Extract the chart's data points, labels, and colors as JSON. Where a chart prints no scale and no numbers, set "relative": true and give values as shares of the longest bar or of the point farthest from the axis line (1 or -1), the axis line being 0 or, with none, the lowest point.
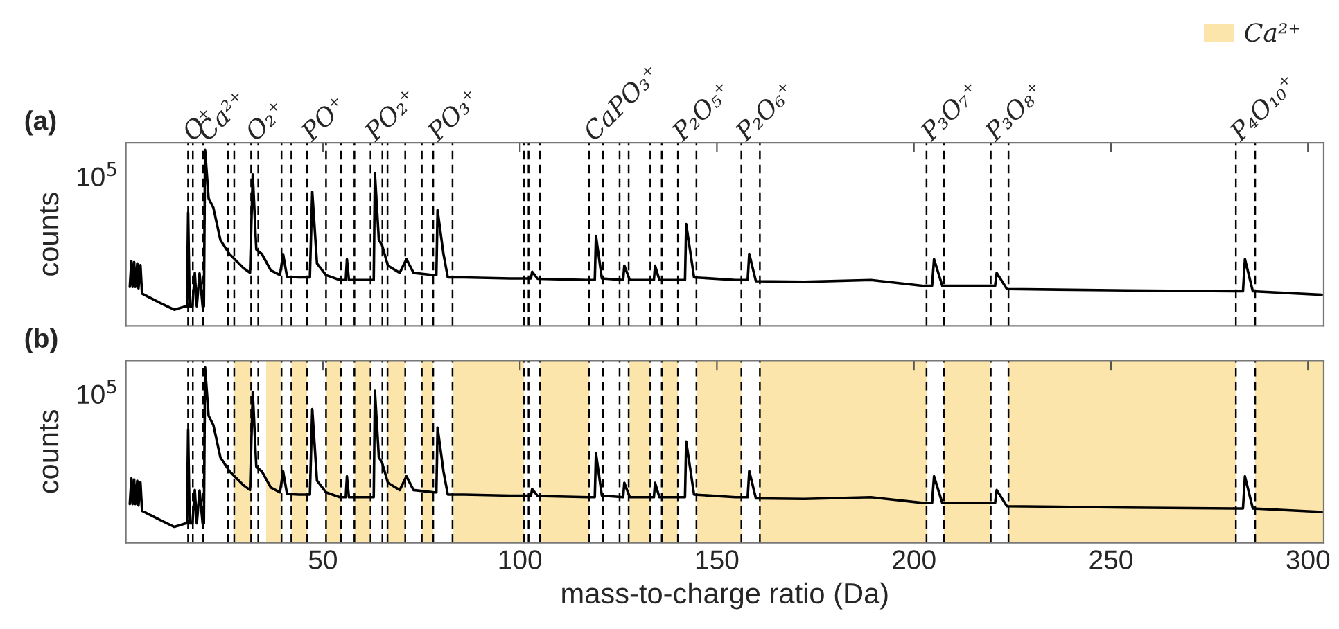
{
  "chart_data": [
    {
      "type": "line",
      "title": "(a)",
      "ylabel": "counts",
      "relative": true,
      "xlim": [
        0,
        304
      ],
      "xticks": [
        50,
        100,
        150,
        200,
        250,
        300
      ],
      "tick_labels": false,
      "grid": false,
      "series": [
        {
          "color": "#000000",
          "x": [
            1.0,
            1.4,
            1.7,
            2.1,
            2.4,
            2.9,
            3.2,
            3.7,
            4.1,
            8.7,
            12.3,
            15.2,
            15.5,
            15.8,
            16.2,
            16.9,
            17.5,
            18.0,
            18.7,
            19.5,
            19.8,
            20.1,
            21.0,
            22.2,
            24.0,
            26.3,
            29.8,
            31.5,
            32.2,
            33.1,
            34.5,
            36.8,
            39.1,
            39.9,
            40.9,
            43.8,
            46.7,
            47.3,
            48.5,
            50.8,
            54.3,
            55.8,
            56.1,
            56.6,
            61.3,
            62.9,
            63.2,
            64.2,
            65.0,
            66.5,
            69.5,
            71.2,
            73.0,
            78.2,
            78.8,
            79.1,
            80.6,
            81.7,
            85.8,
            97.5,
            102.8,
            103.1,
            104.5,
            117.3,
            119.0,
            119.3,
            120.8,
            126.2,
            126.5,
            127.9,
            134.0,
            134.3,
            135.4,
            141.3,
            141.9,
            142.2,
            144.2,
            154.7,
            157.8,
            158.2,
            159.9,
            172.2,
            189.1,
            202.5,
            204.6,
            205.1,
            207.2,
            218.9,
            220.6,
            221.0,
            223.6,
            253.9,
            281.9,
            283.5,
            284.0,
            286.0,
            303.5
          ],
          "values": [
            0.221,
            0.367,
            0.221,
            0.362,
            0.221,
            0.354,
            0.213,
            0.345,
            0.183,
            0.13,
            0.091,
            0.111,
            0.111,
            0.644,
            0.111,
            0.111,
            0.301,
            0.111,
            0.298,
            0.107,
            0.111,
            1,
            0.724,
            0.672,
            0.487,
            0.408,
            0.329,
            0.301,
            0.86,
            0.434,
            0.408,
            0.315,
            0.288,
            0.408,
            0.279,
            0.275,
            0.275,
            0.762,
            0.354,
            0.288,
            0.26,
            0.26,
            0.379,
            0.26,
            0.26,
            0.26,
            0.867,
            0.487,
            0.459,
            0.342,
            0.301,
            0.379,
            0.301,
            0.288,
            0.288,
            0.657,
            0.408,
            0.275,
            0.275,
            0.269,
            0.269,
            0.307,
            0.267,
            0.26,
            0.26,
            0.511,
            0.269,
            0.26,
            0.342,
            0.26,
            0.26,
            0.342,
            0.26,
            0.26,
            0.26,
            0.578,
            0.275,
            0.26,
            0.26,
            0.409,
            0.253,
            0.25,
            0.26,
            0.227,
            0.227,
            0.379,
            0.227,
            0.227,
            0.227,
            0.301,
            0.209,
            0.201,
            0.196,
            0.196,
            0.379,
            0.196,
            0.176
          ]
        }
      ],
      "annotations": [
        "10$^{5}$"
      ],
      "ref_lines": [
        {
          "axis": "x",
          "value": 15.8,
          "line_style": "dashed",
          "label": "O⁺"
        },
        {
          "axis": "x",
          "value": 17.0,
          "line_style": "dashed"
        },
        {
          "axis": "x",
          "value": 19.6,
          "line_style": "dashed",
          "label": "Ca²⁺"
        },
        {
          "axis": "x",
          "value": 25.9,
          "line_style": "dashed"
        },
        {
          "axis": "x",
          "value": 27.5,
          "line_style": "dashed"
        },
        {
          "axis": "x",
          "value": 31.8,
          "line_style": "dashed",
          "label": "O₂⁺"
        },
        {
          "axis": "x",
          "value": 33.6,
          "line_style": "dashed"
        },
        {
          "axis": "x",
          "value": 39.5,
          "line_style": "dashed"
        },
        {
          "axis": "x",
          "value": 42.0,
          "line_style": "dashed"
        },
        {
          "axis": "x",
          "value": 46.0,
          "line_style": "dashed",
          "label": "PO⁺"
        },
        {
          "axis": "x",
          "value": 50.8,
          "line_style": "dashed"
        },
        {
          "axis": "x",
          "value": 54.6,
          "line_style": "dashed"
        },
        {
          "axis": "x",
          "value": 58.0,
          "line_style": "dashed"
        },
        {
          "axis": "x",
          "value": 62.1,
          "line_style": "dashed",
          "label": "PO₂⁺"
        },
        {
          "axis": "x",
          "value": 65.1,
          "line_style": "dashed"
        },
        {
          "axis": "x",
          "value": 66.4,
          "line_style": "dashed"
        },
        {
          "axis": "x",
          "value": 70.9,
          "line_style": "dashed"
        },
        {
          "axis": "x",
          "value": 75.1,
          "line_style": "dashed"
        },
        {
          "axis": "x",
          "value": 78.0,
          "line_style": "dashed",
          "label": "PO₃⁺"
        },
        {
          "axis": "x",
          "value": 82.9,
          "line_style": "dashed"
        },
        {
          "axis": "x",
          "value": 101.0,
          "line_style": "dashed"
        },
        {
          "axis": "x",
          "value": 102.2,
          "line_style": "dashed"
        },
        {
          "axis": "x",
          "value": 105.1,
          "line_style": "dashed"
        },
        {
          "axis": "x",
          "value": 117.6,
          "line_style": "dashed",
          "label": "CaPO₃⁺"
        },
        {
          "axis": "x",
          "value": 121.1,
          "line_style": "dashed"
        },
        {
          "axis": "x",
          "value": 125.3,
          "line_style": "dashed"
        },
        {
          "axis": "x",
          "value": 127.6,
          "line_style": "dashed"
        },
        {
          "axis": "x",
          "value": 133.1,
          "line_style": "dashed"
        },
        {
          "axis": "x",
          "value": 136.0,
          "line_style": "dashed"
        },
        {
          "axis": "x",
          "value": 140.1,
          "line_style": "dashed",
          "label": "P₂O₅⁺"
        },
        {
          "axis": "x",
          "value": 144.8,
          "line_style": "dashed"
        },
        {
          "axis": "x",
          "value": 156.2,
          "line_style": "dashed",
          "label": "P₂O₆⁺"
        },
        {
          "axis": "x",
          "value": 160.9,
          "line_style": "dashed"
        },
        {
          "axis": "x",
          "value": 203.2,
          "line_style": "dashed",
          "label": "P₃O₇⁺"
        },
        {
          "axis": "x",
          "value": 207.6,
          "line_style": "dashed"
        },
        {
          "axis": "x",
          "value": 219.5,
          "line_style": "dashed",
          "label": "P₃O₈⁺"
        },
        {
          "axis": "x",
          "value": 224.0,
          "line_style": "dashed"
        },
        {
          "axis": "x",
          "value": 281.7,
          "line_style": "dashed",
          "label": "P₄O₁₀⁺"
        },
        {
          "axis": "x",
          "value": 286.6,
          "line_style": "dashed"
        }
      ]
    },
    {
      "type": "line",
      "title": "(b)",
      "xlabel": "mass-to-charge ratio (Da)",
      "ylabel": "counts",
      "relative": true,
      "xlim": [
        0,
        304
      ],
      "xticks": [
        50,
        100,
        150,
        200,
        250,
        300
      ],
      "tick_labels": "x",
      "grid": false,
      "legend": "top right",
      "series": [
        {
          "color": "#000000",
          "x": [
            1.0,
            1.4,
            1.7,
            2.1,
            2.4,
            2.9,
            3.2,
            3.7,
            4.1,
            8.7,
            12.3,
            15.2,
            15.5,
            15.8,
            16.2,
            16.9,
            17.5,
            18.0,
            18.7,
            19.5,
            19.8,
            20.1,
            21.0,
            22.2,
            24.0,
            26.3,
            29.8,
            31.5,
            32.2,
            33.1,
            34.5,
            36.8,
            39.1,
            39.9,
            40.9,
            43.8,
            46.7,
            47.3,
            48.5,
            50.8,
            54.3,
            55.8,
            56.1,
            56.6,
            61.3,
            62.9,
            63.2,
            64.2,
            65.0,
            66.5,
            69.5,
            71.2,
            73.0,
            78.2,
            78.8,
            79.1,
            80.6,
            81.7,
            85.8,
            97.5,
            102.8,
            103.1,
            104.5,
            117.3,
            119.0,
            119.3,
            120.8,
            126.2,
            126.5,
            127.9,
            134.0,
            134.3,
            135.4,
            141.3,
            141.9,
            142.2,
            144.2,
            154.7,
            157.8,
            158.2,
            159.9,
            172.2,
            189.1,
            202.5,
            204.6,
            205.1,
            207.2,
            218.9,
            220.6,
            221.0,
            223.6,
            253.9,
            281.9,
            283.5,
            284.0,
            286.0,
            303.5
          ],
          "values": [
            0.221,
            0.367,
            0.221,
            0.362,
            0.221,
            0.354,
            0.213,
            0.345,
            0.183,
            0.13,
            0.091,
            0.111,
            0.111,
            0.644,
            0.111,
            0.111,
            0.301,
            0.111,
            0.298,
            0.107,
            0.111,
            1,
            0.724,
            0.672,
            0.487,
            0.408,
            0.329,
            0.301,
            0.86,
            0.434,
            0.408,
            0.315,
            0.288,
            0.408,
            0.279,
            0.275,
            0.275,
            0.762,
            0.354,
            0.288,
            0.26,
            0.26,
            0.379,
            0.26,
            0.26,
            0.26,
            0.867,
            0.487,
            0.459,
            0.342,
            0.301,
            0.379,
            0.301,
            0.288,
            0.288,
            0.657,
            0.408,
            0.275,
            0.275,
            0.269,
            0.269,
            0.307,
            0.267,
            0.26,
            0.26,
            0.511,
            0.269,
            0.26,
            0.342,
            0.26,
            0.26,
            0.342,
            0.26,
            0.26,
            0.26,
            0.578,
            0.275,
            0.26,
            0.26,
            0.409,
            0.253,
            0.25,
            0.26,
            0.227,
            0.227,
            0.379,
            0.227,
            0.227,
            0.227,
            0.301,
            0.209,
            0.201,
            0.196,
            0.196,
            0.379,
            0.196,
            0.176
          ]
        }
      ],
      "annotations": [
        "10$^{5}$"
      ],
      "bands": [
        {
          "axis": "x",
          "from": 27.5,
          "to": 31.8,
          "color": "#fbe5aa",
          "label": "Ca²⁺"
        },
        {
          "axis": "x",
          "from": 35.6,
          "to": 39.5,
          "color": "#fbe5aa"
        },
        {
          "axis": "x",
          "from": 42.0,
          "to": 46.0,
          "color": "#fbe5aa"
        },
        {
          "axis": "x",
          "from": 50.8,
          "to": 54.6,
          "color": "#fbe5aa"
        },
        {
          "axis": "x",
          "from": 58.0,
          "to": 62.1,
          "color": "#fbe5aa"
        },
        {
          "axis": "x",
          "from": 66.4,
          "to": 70.9,
          "color": "#fbe5aa"
        },
        {
          "axis": "x",
          "from": 75.1,
          "to": 78.0,
          "color": "#fbe5aa"
        },
        {
          "axis": "x",
          "from": 82.9,
          "to": 101.0,
          "color": "#fbe5aa"
        },
        {
          "axis": "x",
          "from": 105.1,
          "to": 117.6,
          "color": "#fbe5aa"
        },
        {
          "axis": "x",
          "from": 127.6,
          "to": 133.1,
          "color": "#fbe5aa"
        },
        {
          "axis": "x",
          "from": 136.0,
          "to": 140.1,
          "color": "#fbe5aa"
        },
        {
          "axis": "x",
          "from": 144.8,
          "to": 156.2,
          "color": "#fbe5aa"
        },
        {
          "axis": "x",
          "from": 160.9,
          "to": 203.2,
          "color": "#fbe5aa"
        },
        {
          "axis": "x",
          "from": 207.6,
          "to": 219.5,
          "color": "#fbe5aa"
        },
        {
          "axis": "x",
          "from": 224.0,
          "to": 281.7,
          "color": "#fbe5aa"
        },
        {
          "axis": "x",
          "from": 286.6,
          "to": 304,
          "color": "#fbe5aa"
        }
      ],
      "ref_lines": [
        {
          "axis": "x",
          "value": 15.8,
          "line_style": "dashed"
        },
        {
          "axis": "x",
          "value": 17.0,
          "line_style": "dashed"
        },
        {
          "axis": "x",
          "value": 19.6,
          "line_style": "dashed"
        },
        {
          "axis": "x",
          "value": 25.9,
          "line_style": "dashed"
        },
        {
          "axis": "x",
          "value": 27.5,
          "line_style": "dashed"
        },
        {
          "axis": "x",
          "value": 31.8,
          "line_style": "dashed"
        },
        {
          "axis": "x",
          "value": 33.6,
          "line_style": "dashed"
        },
        {
          "axis": "x",
          "value": 39.5,
          "line_style": "dashed"
        },
        {
          "axis": "x",
          "value": 42.0,
          "line_style": "dashed"
        },
        {
          "axis": "x",
          "value": 46.0,
          "line_style": "dashed"
        },
        {
          "axis": "x",
          "value": 50.8,
          "line_style": "dashed"
        },
        {
          "axis": "x",
          "value": 54.6,
          "line_style": "dashed"
        },
        {
          "axis": "x",
          "value": 58.0,
          "line_style": "dashed"
        },
        {
          "axis": "x",
          "value": 62.1,
          "line_style": "dashed"
        },
        {
          "axis": "x",
          "value": 65.1,
          "line_style": "dashed"
        },
        {
          "axis": "x",
          "value": 66.4,
          "line_style": "dashed"
        },
        {
          "axis": "x",
          "value": 70.9,
          "line_style": "dashed"
        },
        {
          "axis": "x",
          "value": 75.1,
          "line_style": "dashed"
        },
        {
          "axis": "x",
          "value": 78.0,
          "line_style": "dashed"
        },
        {
          "axis": "x",
          "value": 82.9,
          "line_style": "dashed"
        },
        {
          "axis": "x",
          "value": 101.0,
          "line_style": "dashed"
        },
        {
          "axis": "x",
          "value": 102.2,
          "line_style": "dashed"
        },
        {
          "axis": "x",
          "value": 105.1,
          "line_style": "dashed"
        },
        {
          "axis": "x",
          "value": 117.6,
          "line_style": "dashed"
        },
        {
          "axis": "x",
          "value": 121.1,
          "line_style": "dashed"
        },
        {
          "axis": "x",
          "value": 125.3,
          "line_style": "dashed"
        },
        {
          "axis": "x",
          "value": 127.6,
          "line_style": "dashed"
        },
        {
          "axis": "x",
          "value": 133.1,
          "line_style": "dashed"
        },
        {
          "axis": "x",
          "value": 136.0,
          "line_style": "dashed"
        },
        {
          "axis": "x",
          "value": 140.1,
          "line_style": "dashed"
        },
        {
          "axis": "x",
          "value": 144.8,
          "line_style": "dashed"
        },
        {
          "axis": "x",
          "value": 156.2,
          "line_style": "dashed"
        },
        {
          "axis": "x",
          "value": 160.9,
          "line_style": "dashed"
        },
        {
          "axis": "x",
          "value": 203.2,
          "line_style": "dashed"
        },
        {
          "axis": "x",
          "value": 207.6,
          "line_style": "dashed"
        },
        {
          "axis": "x",
          "value": 219.5,
          "line_style": "dashed"
        },
        {
          "axis": "x",
          "value": 224.0,
          "line_style": "dashed"
        },
        {
          "axis": "x",
          "value": 281.7,
          "line_style": "dashed"
        },
        {
          "axis": "x",
          "value": 286.6,
          "line_style": "dashed"
        }
      ]
    }
  ]
}
